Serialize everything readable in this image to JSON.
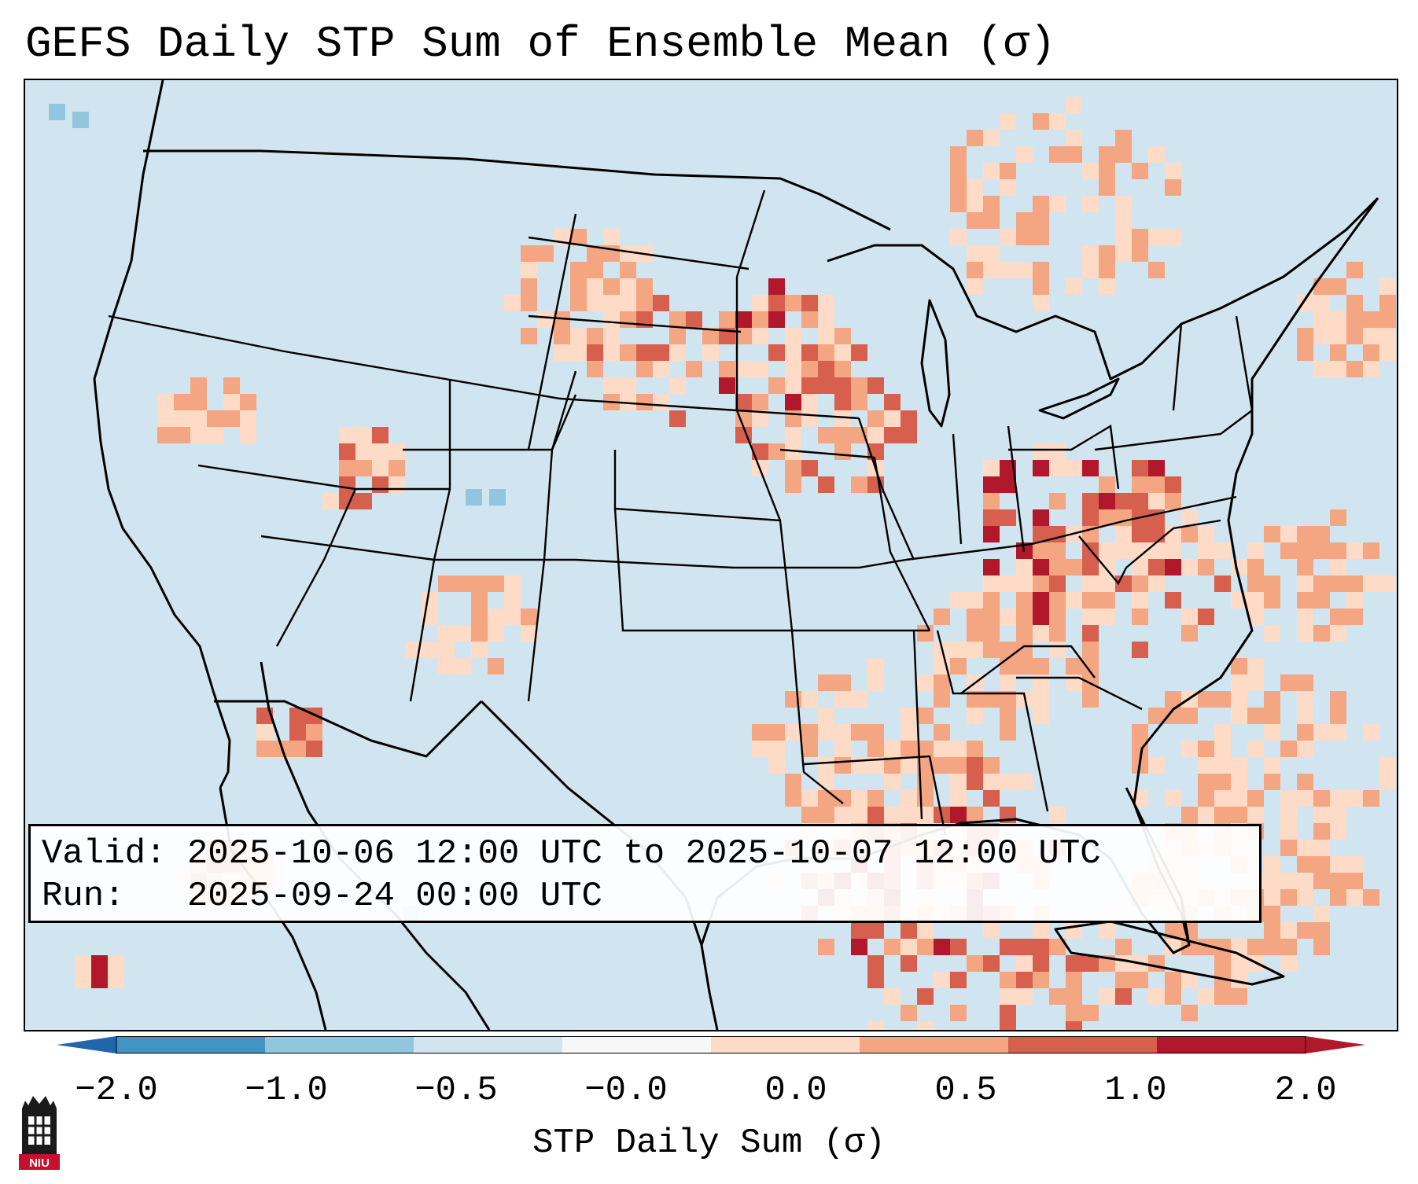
{
  "title": "GEFS Daily STP Sum of Ensemble Mean (σ)",
  "info": {
    "valid_label": "Valid:",
    "valid_value": "2025-10-06 12:00 UTC to 2025-10-07 12:00 UTC",
    "run_label": "Run:",
    "run_value": "2025-09-24 00:00 UTC"
  },
  "colorbar": {
    "label": "STP Daily Sum (σ)",
    "ticks": [
      "−2.0",
      "−1.0",
      "−0.5",
      "−0.0",
      "0.0",
      "0.5",
      "1.0",
      "2.0"
    ],
    "colors": [
      "#4393c3",
      "#92c5de",
      "#d1e5f0",
      "#f7f7f7",
      "#fddbc7",
      "#f4a582",
      "#d6604d",
      "#b2182b"
    ],
    "under_color": "#2166ac",
    "over_color": "#b2182b"
  },
  "map": {
    "background_color": "#d1e5f0",
    "outline_color": "#000000",
    "projection_label": "Lambert Conformal CONUS"
  },
  "logo": {
    "text": "NIU",
    "color": "#c8102e"
  }
}
